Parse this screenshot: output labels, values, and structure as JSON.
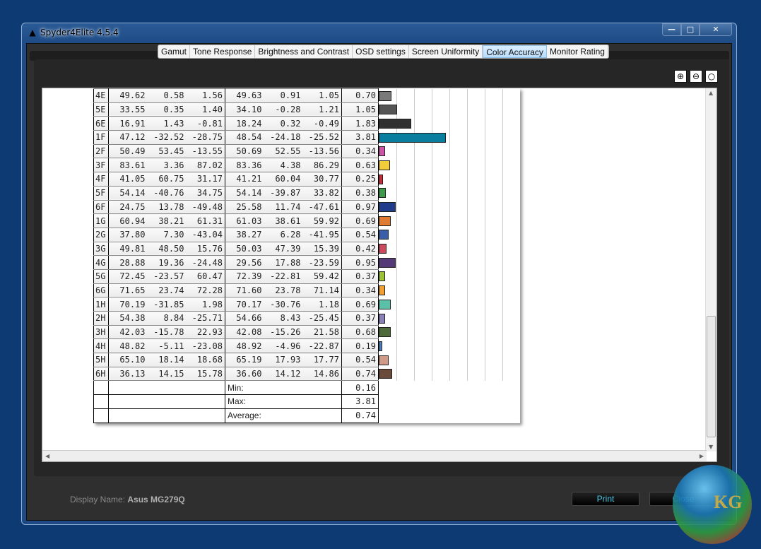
{
  "window": {
    "title": "Spyder4Elite 4.5.4",
    "app_icon": "spyder-icon",
    "controls": [
      "minimize",
      "maximize",
      "close"
    ]
  },
  "tabs": [
    {
      "label": "Gamut"
    },
    {
      "label": "Tone Response"
    },
    {
      "label": "Brightness and Contrast"
    },
    {
      "label": "OSD settings"
    },
    {
      "label": "Screen Uniformity"
    },
    {
      "label": "Color Accuracy",
      "active": true
    },
    {
      "label": "Monitor Rating"
    }
  ],
  "zoom_icons": [
    "zoom-in-icon",
    "zoom-out-icon",
    "zoom-fit-icon"
  ],
  "table": {
    "rows": [
      [
        "4E",
        "49.62",
        "0.58",
        "1.56",
        "49.63",
        "0.91",
        "1.05",
        "0.70",
        "#7a7a7a"
      ],
      [
        "5E",
        "33.55",
        "0.35",
        "1.40",
        "34.10",
        "-0.28",
        "1.21",
        "1.05",
        "#555555"
      ],
      [
        "6E",
        "16.91",
        "1.43",
        "-0.81",
        "18.24",
        "0.32",
        "-0.49",
        "1.83",
        "#303030"
      ],
      [
        "1F",
        "47.12",
        "-32.52",
        "-28.75",
        "48.54",
        "-24.18",
        "-25.52",
        "3.81",
        "#0a7e9e"
      ],
      [
        "2F",
        "50.49",
        "53.45",
        "-13.55",
        "50.69",
        "52.55",
        "-13.56",
        "0.34",
        "#cc55a8"
      ],
      [
        "3F",
        "83.61",
        "3.36",
        "87.02",
        "83.36",
        "4.38",
        "86.29",
        "0.63",
        "#f2cc3a"
      ],
      [
        "4F",
        "41.05",
        "60.75",
        "31.17",
        "41.21",
        "60.04",
        "30.77",
        "0.25",
        "#cc2a3a"
      ],
      [
        "5F",
        "54.14",
        "-40.76",
        "34.75",
        "54.14",
        "-39.87",
        "33.82",
        "0.38",
        "#3d9a4a"
      ],
      [
        "6F",
        "24.75",
        "13.78",
        "-49.48",
        "25.58",
        "11.74",
        "-47.61",
        "0.97",
        "#1f3d8a"
      ],
      [
        "1G",
        "60.94",
        "38.21",
        "61.31",
        "61.03",
        "38.61",
        "59.92",
        "0.69",
        "#e07b30"
      ],
      [
        "2G",
        "37.80",
        "7.30",
        "-43.04",
        "38.27",
        "6.28",
        "-41.95",
        "0.54",
        "#3a5ea8"
      ],
      [
        "3G",
        "49.81",
        "48.50",
        "15.76",
        "50.03",
        "47.39",
        "15.39",
        "0.42",
        "#cc4a5e"
      ],
      [
        "4G",
        "28.88",
        "19.36",
        "-24.48",
        "29.56",
        "17.88",
        "-23.59",
        "0.95",
        "#553a78"
      ],
      [
        "5G",
        "72.45",
        "-23.57",
        "60.47",
        "72.39",
        "-22.81",
        "59.42",
        "0.37",
        "#9cc03a"
      ],
      [
        "6G",
        "71.65",
        "23.74",
        "72.28",
        "71.60",
        "23.78",
        "71.14",
        "0.34",
        "#f0a030"
      ],
      [
        "1H",
        "70.19",
        "-31.85",
        "1.98",
        "70.17",
        "-30.76",
        "1.18",
        "0.69",
        "#5cc0a8"
      ],
      [
        "2H",
        "54.38",
        "8.84",
        "-25.71",
        "54.66",
        "8.43",
        "-25.45",
        "0.37",
        "#8a80b8"
      ],
      [
        "3H",
        "42.03",
        "-15.78",
        "22.93",
        "42.08",
        "-15.26",
        "21.58",
        "0.68",
        "#4e6a3a"
      ],
      [
        "4H",
        "48.82",
        "-5.11",
        "-23.08",
        "48.92",
        "-4.96",
        "-22.87",
        "0.19",
        "#4a80c0"
      ],
      [
        "5H",
        "65.10",
        "18.14",
        "18.68",
        "65.19",
        "17.93",
        "17.77",
        "0.54",
        "#d09a88"
      ],
      [
        "6H",
        "36.13",
        "14.15",
        "15.78",
        "36.60",
        "14.12",
        "14.86",
        "0.74",
        "#6a4a3a"
      ]
    ],
    "summary": [
      {
        "label": "Min:",
        "value": "0.16"
      },
      {
        "label": "Max:",
        "value": "3.81"
      },
      {
        "label": "Average:",
        "value": "0.74"
      }
    ],
    "bar_scale_max": 8
  },
  "footer": {
    "display_label": "Display Name:",
    "display_value": "Asus MG279Q",
    "print_label": "Print",
    "close_label": "Close"
  },
  "watermark": "KG"
}
